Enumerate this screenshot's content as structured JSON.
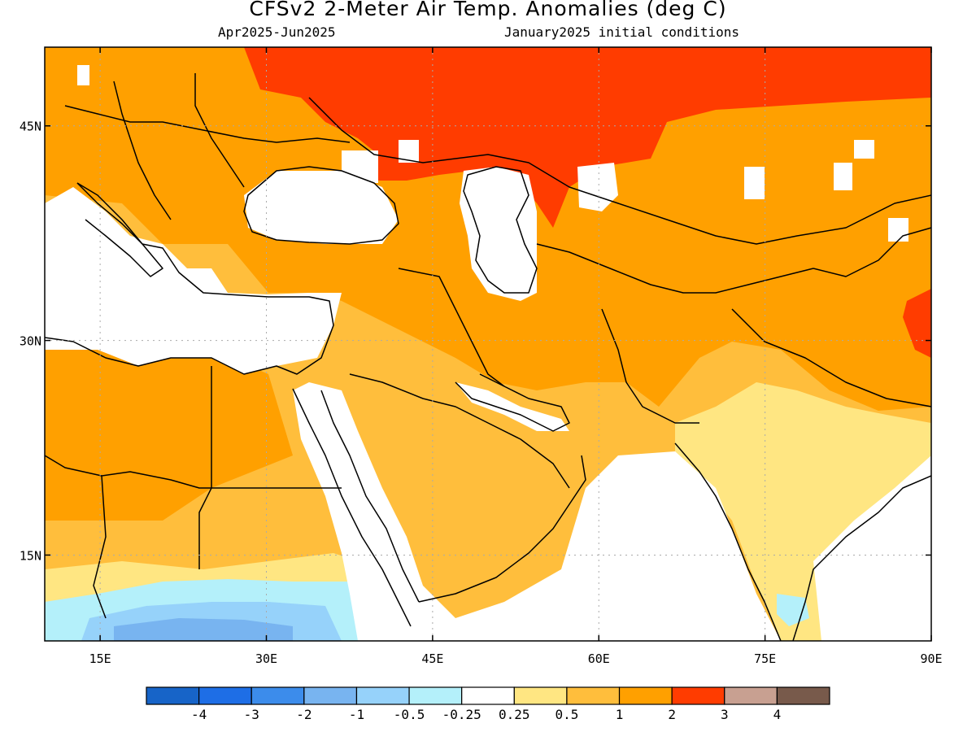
{
  "title": "CFSv2 2-Meter Air Temp. Anomalies (deg C)",
  "subtitle_left": "Apr2025-Jun2025",
  "subtitle_right": "January2025 initial conditions",
  "extent": {
    "lon_min": 10,
    "lon_max": 90,
    "lat_min": 9,
    "lat_max": 50.5
  },
  "lon_ticks": [
    {
      "value": 15,
      "label": "15E"
    },
    {
      "value": 30,
      "label": "30E"
    },
    {
      "value": 45,
      "label": "45E"
    },
    {
      "value": 60,
      "label": "60E"
    },
    {
      "value": 75,
      "label": "75E"
    },
    {
      "value": 90,
      "label": "90E"
    }
  ],
  "lat_ticks": [
    {
      "value": 45,
      "label": "45N"
    },
    {
      "value": 30,
      "label": "30N"
    },
    {
      "value": 15,
      "label": "15N"
    }
  ],
  "colorbar": {
    "colors": [
      "#1764c8",
      "#1e6ee6",
      "#3c8ceb",
      "#78b4f0",
      "#96d2fa",
      "#b4f0fa",
      "#ffffff",
      "#ffe682",
      "#ffbe3c",
      "#ffa000",
      "#ff3c00",
      "#c8a091",
      "#785a4b"
    ],
    "labels": [
      "-4",
      "-3",
      "-2",
      "-1",
      "-0.5",
      "-0.25",
      "0.25",
      "0.5",
      "1",
      "2",
      "3",
      "4"
    ]
  },
  "map_colors": {
    "none": "#ffffff",
    "light_yellow": "#ffe682",
    "light_orange": "#ffbe3c",
    "orange": "#ffa000",
    "red": "#ff3c00",
    "light_blue": "#b4f0fa",
    "mid_blue": "#96d2fa",
    "blue": "#78b4f0",
    "grid": "#aaaaaa",
    "coast": "#000000"
  }
}
